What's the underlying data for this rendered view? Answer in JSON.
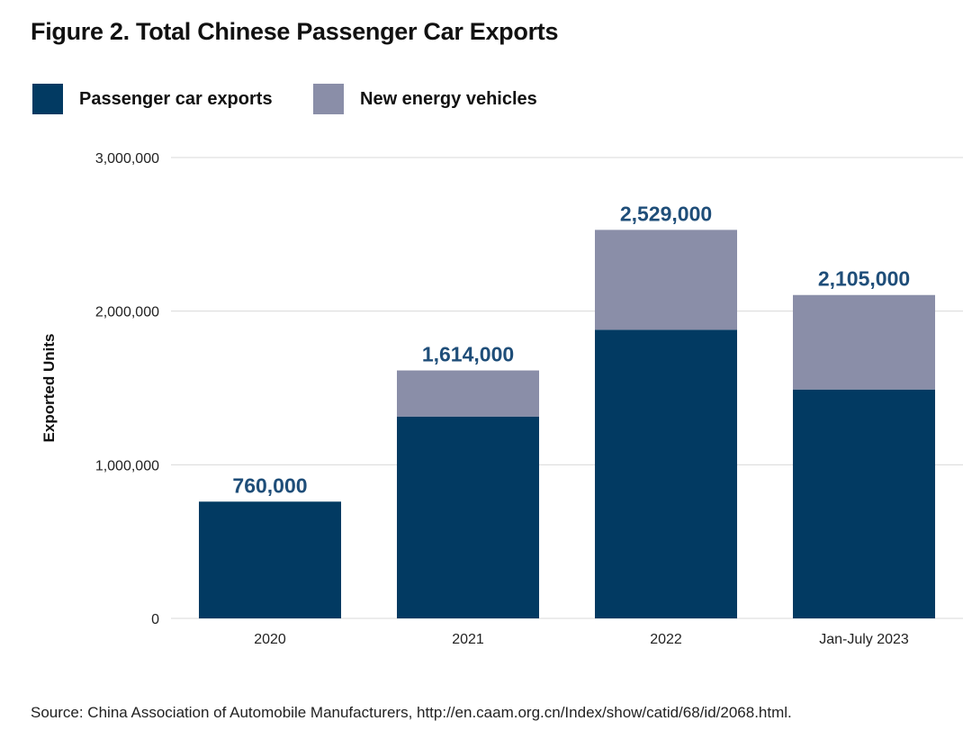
{
  "title": "Figure 2. Total Chinese Passenger Car Exports",
  "source": "Source: China Association of Automobile Manufacturers, http://en.caam.org.cn/Index/show/catid/68/id/2068.html.",
  "colors": {
    "passenger": "#023a62",
    "nev": "#8a8ea8",
    "grid": "#d9d9d9",
    "total_label": "#1f4e79"
  },
  "chart_data": {
    "type": "bar",
    "stacked": true,
    "categories": [
      "2020",
      "2021",
      "2022",
      "Jan-July 2023"
    ],
    "series": [
      {
        "name": "Passenger car exports",
        "values": [
          760000,
          1314000,
          1879000,
          1490000
        ]
      },
      {
        "name": "New energy vehicles",
        "values": [
          0,
          300000,
          650000,
          615000
        ]
      }
    ],
    "totals": [
      760000,
      1614000,
      2529000,
      2105000
    ],
    "total_labels": [
      "760,000",
      "1,614,000",
      "2,529,000",
      "2,105,000"
    ],
    "yticks": [
      0,
      1000000,
      2000000,
      3000000
    ],
    "ytick_labels": [
      "0",
      "1,000,000",
      "2,000,000",
      "3,000,000"
    ],
    "ylim": [
      0,
      3000000
    ],
    "xlabel": "",
    "ylabel": "Exported Units",
    "grid": true,
    "legend_position": "top-left"
  }
}
